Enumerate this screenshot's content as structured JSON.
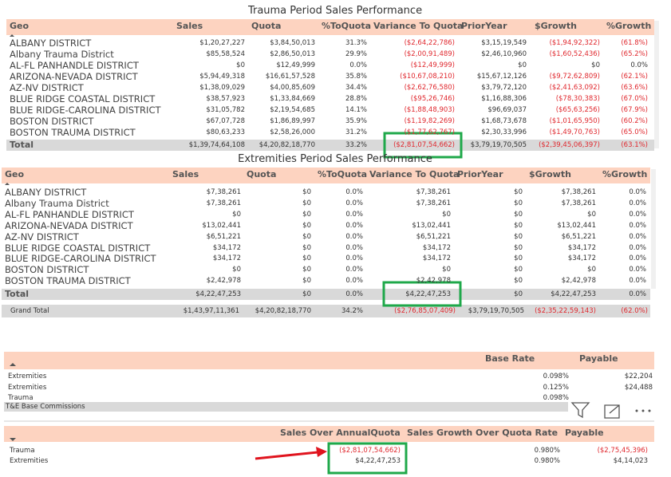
{
  "trauma": {
    "title": "Trauma Period Sales Performance",
    "headers": [
      "Geo",
      "Sales",
      "Quota",
      "%ToQuota",
      "Variance To Quota",
      "PriorYear",
      "$Growth",
      "%Growth"
    ],
    "rows": [
      [
        "ALBANY DISTRICT",
        "$1,20,27,227",
        "$3,84,50,013",
        "31.3%",
        "($2,64,22,786)",
        "$3,15,19,549",
        "($1,94,92,322)",
        "(61.8%)"
      ],
      [
        "Albany Trauma District",
        "$85,58,524",
        "$2,86,50,013",
        "29.9%",
        "($2,00,91,489)",
        "$2,46,10,960",
        "($1,60,52,436)",
        "(65.2%)"
      ],
      [
        "AL-FL PANHANDLE DISTRICT",
        "$0",
        "$12,49,999",
        "0.0%",
        "($12,49,999)",
        "$0",
        "$0",
        "0.0%"
      ],
      [
        "ARIZONA-NEVADA DISTRICT",
        "$5,94,49,318",
        "$16,61,57,528",
        "35.8%",
        "($10,67,08,210)",
        "$15,67,12,126",
        "($9,72,62,809)",
        "(62.1%)"
      ],
      [
        "AZ-NV DISTRICT",
        "$1,38,09,029",
        "$4,00,85,609",
        "34.4%",
        "($2,62,76,580)",
        "$3,79,72,120",
        "($2,41,63,092)",
        "(63.6%)"
      ],
      [
        "BLUE RIDGE COASTAL DISTRICT",
        "$38,57,923",
        "$1,33,84,669",
        "28.8%",
        "($95,26,746)",
        "$1,16,88,306",
        "($78,30,383)",
        "(67.0%)"
      ],
      [
        "BLUE RIDGE-CAROLINA DISTRICT",
        "$31,05,782",
        "$2,19,54,685",
        "14.1%",
        "($1,88,48,903)",
        "$96,69,037",
        "($65,63,256)",
        "(67.9%)"
      ],
      [
        "BOSTON DISTRICT",
        "$67,07,728",
        "$1,86,89,997",
        "35.9%",
        "($1,19,82,269)",
        "$1,68,73,678",
        "($1,01,65,950)",
        "(60.2%)"
      ],
      [
        "BOSTON TRAUMA DISTRICT",
        "$80,63,233",
        "$2,58,26,000",
        "31.2%",
        "($1,77,62,767)",
        "$2,30,33,996",
        "($1,49,70,763)",
        "(65.0%)"
      ]
    ],
    "total": [
      "Total",
      "$1,39,74,64,108",
      "$4,20,82,18,770",
      "33.2%",
      "($2,81,07,54,662)",
      "$3,79,19,70,505",
      "($2,39,45,06,397)",
      "(63.1%)"
    ]
  },
  "extremities": {
    "title": "Extremities Period Sales Performance",
    "headers": [
      "Geo",
      "Sales",
      "Quota",
      "%ToQuota",
      "Variance To Quota",
      "PriorYear",
      "$Growth",
      "%Growth"
    ],
    "rows": [
      [
        "ALBANY DISTRICT",
        "$7,38,261",
        "$0",
        "0.0%",
        "$7,38,261",
        "$0",
        "$7,38,261",
        "0.0%"
      ],
      [
        "Albany Trauma District",
        "$7,38,261",
        "$0",
        "0.0%",
        "$7,38,261",
        "$0",
        "$7,38,261",
        "0.0%"
      ],
      [
        "AL-FL PANHANDLE DISTRICT",
        "$0",
        "$0",
        "0.0%",
        "$0",
        "$0",
        "$0",
        "0.0%"
      ],
      [
        "ARIZONA-NEVADA DISTRICT",
        "$13,02,441",
        "$0",
        "0.0%",
        "$13,02,441",
        "$0",
        "$13,02,441",
        "0.0%"
      ],
      [
        "AZ-NV DISTRICT",
        "$6,51,221",
        "$0",
        "0.0%",
        "$6,51,221",
        "$0",
        "$6,51,221",
        "0.0%"
      ],
      [
        "BLUE RIDGE COASTAL DISTRICT",
        "$34,172",
        "$0",
        "0.0%",
        "$34,172",
        "$0",
        "$34,172",
        "0.0%"
      ],
      [
        "BLUE RIDGE-CAROLINA DISTRICT",
        "$34,172",
        "$0",
        "0.0%",
        "$34,172",
        "$0",
        "$34,172",
        "0.0%"
      ],
      [
        "BOSTON DISTRICT",
        "$0",
        "$0",
        "0.0%",
        "$0",
        "$0",
        "$0",
        "0.0%"
      ],
      [
        "BOSTON TRAUMA DISTRICT",
        "$2,42,978",
        "$0",
        "0.0%",
        "$2,42,978",
        "$0",
        "$2,42,978",
        "0.0%"
      ]
    ],
    "total": [
      "Total",
      "$4,22,47,253",
      "$0",
      "0.0%",
      "$4,22,47,253",
      "$0",
      "$4,22,47,253",
      "0.0%"
    ]
  },
  "grand_total": [
    "Grand Total",
    "$1,43,97,11,361",
    "$4,20,82,18,770",
    "34.2%",
    "($2,76,85,07,409)",
    "$3,79,19,70,505",
    "($2,35,22,59,143)",
    "(62.0%)"
  ],
  "commissions": {
    "headers": [
      "Base Rate",
      "Payable"
    ],
    "rows": [
      [
        "Extremities",
        "0.098%",
        "$22,204"
      ],
      [
        "Extremities",
        "0.125%",
        "$24,488"
      ],
      [
        "Trauma",
        "0.098%"
      ]
    ],
    "footer": "T&E Base Commissions"
  },
  "payout": {
    "headers": [
      "Sales Over AnnualQuota",
      "Sales Growth Over Quota Rate",
      "Payable"
    ],
    "rows": [
      [
        "Trauma",
        "($2,81,07,54,662)",
        "0.980%",
        "($2,75,45,396)"
      ],
      [
        "Extremities",
        "$4,22,47,253",
        "0.980%",
        "$4,14,023"
      ]
    ]
  }
}
